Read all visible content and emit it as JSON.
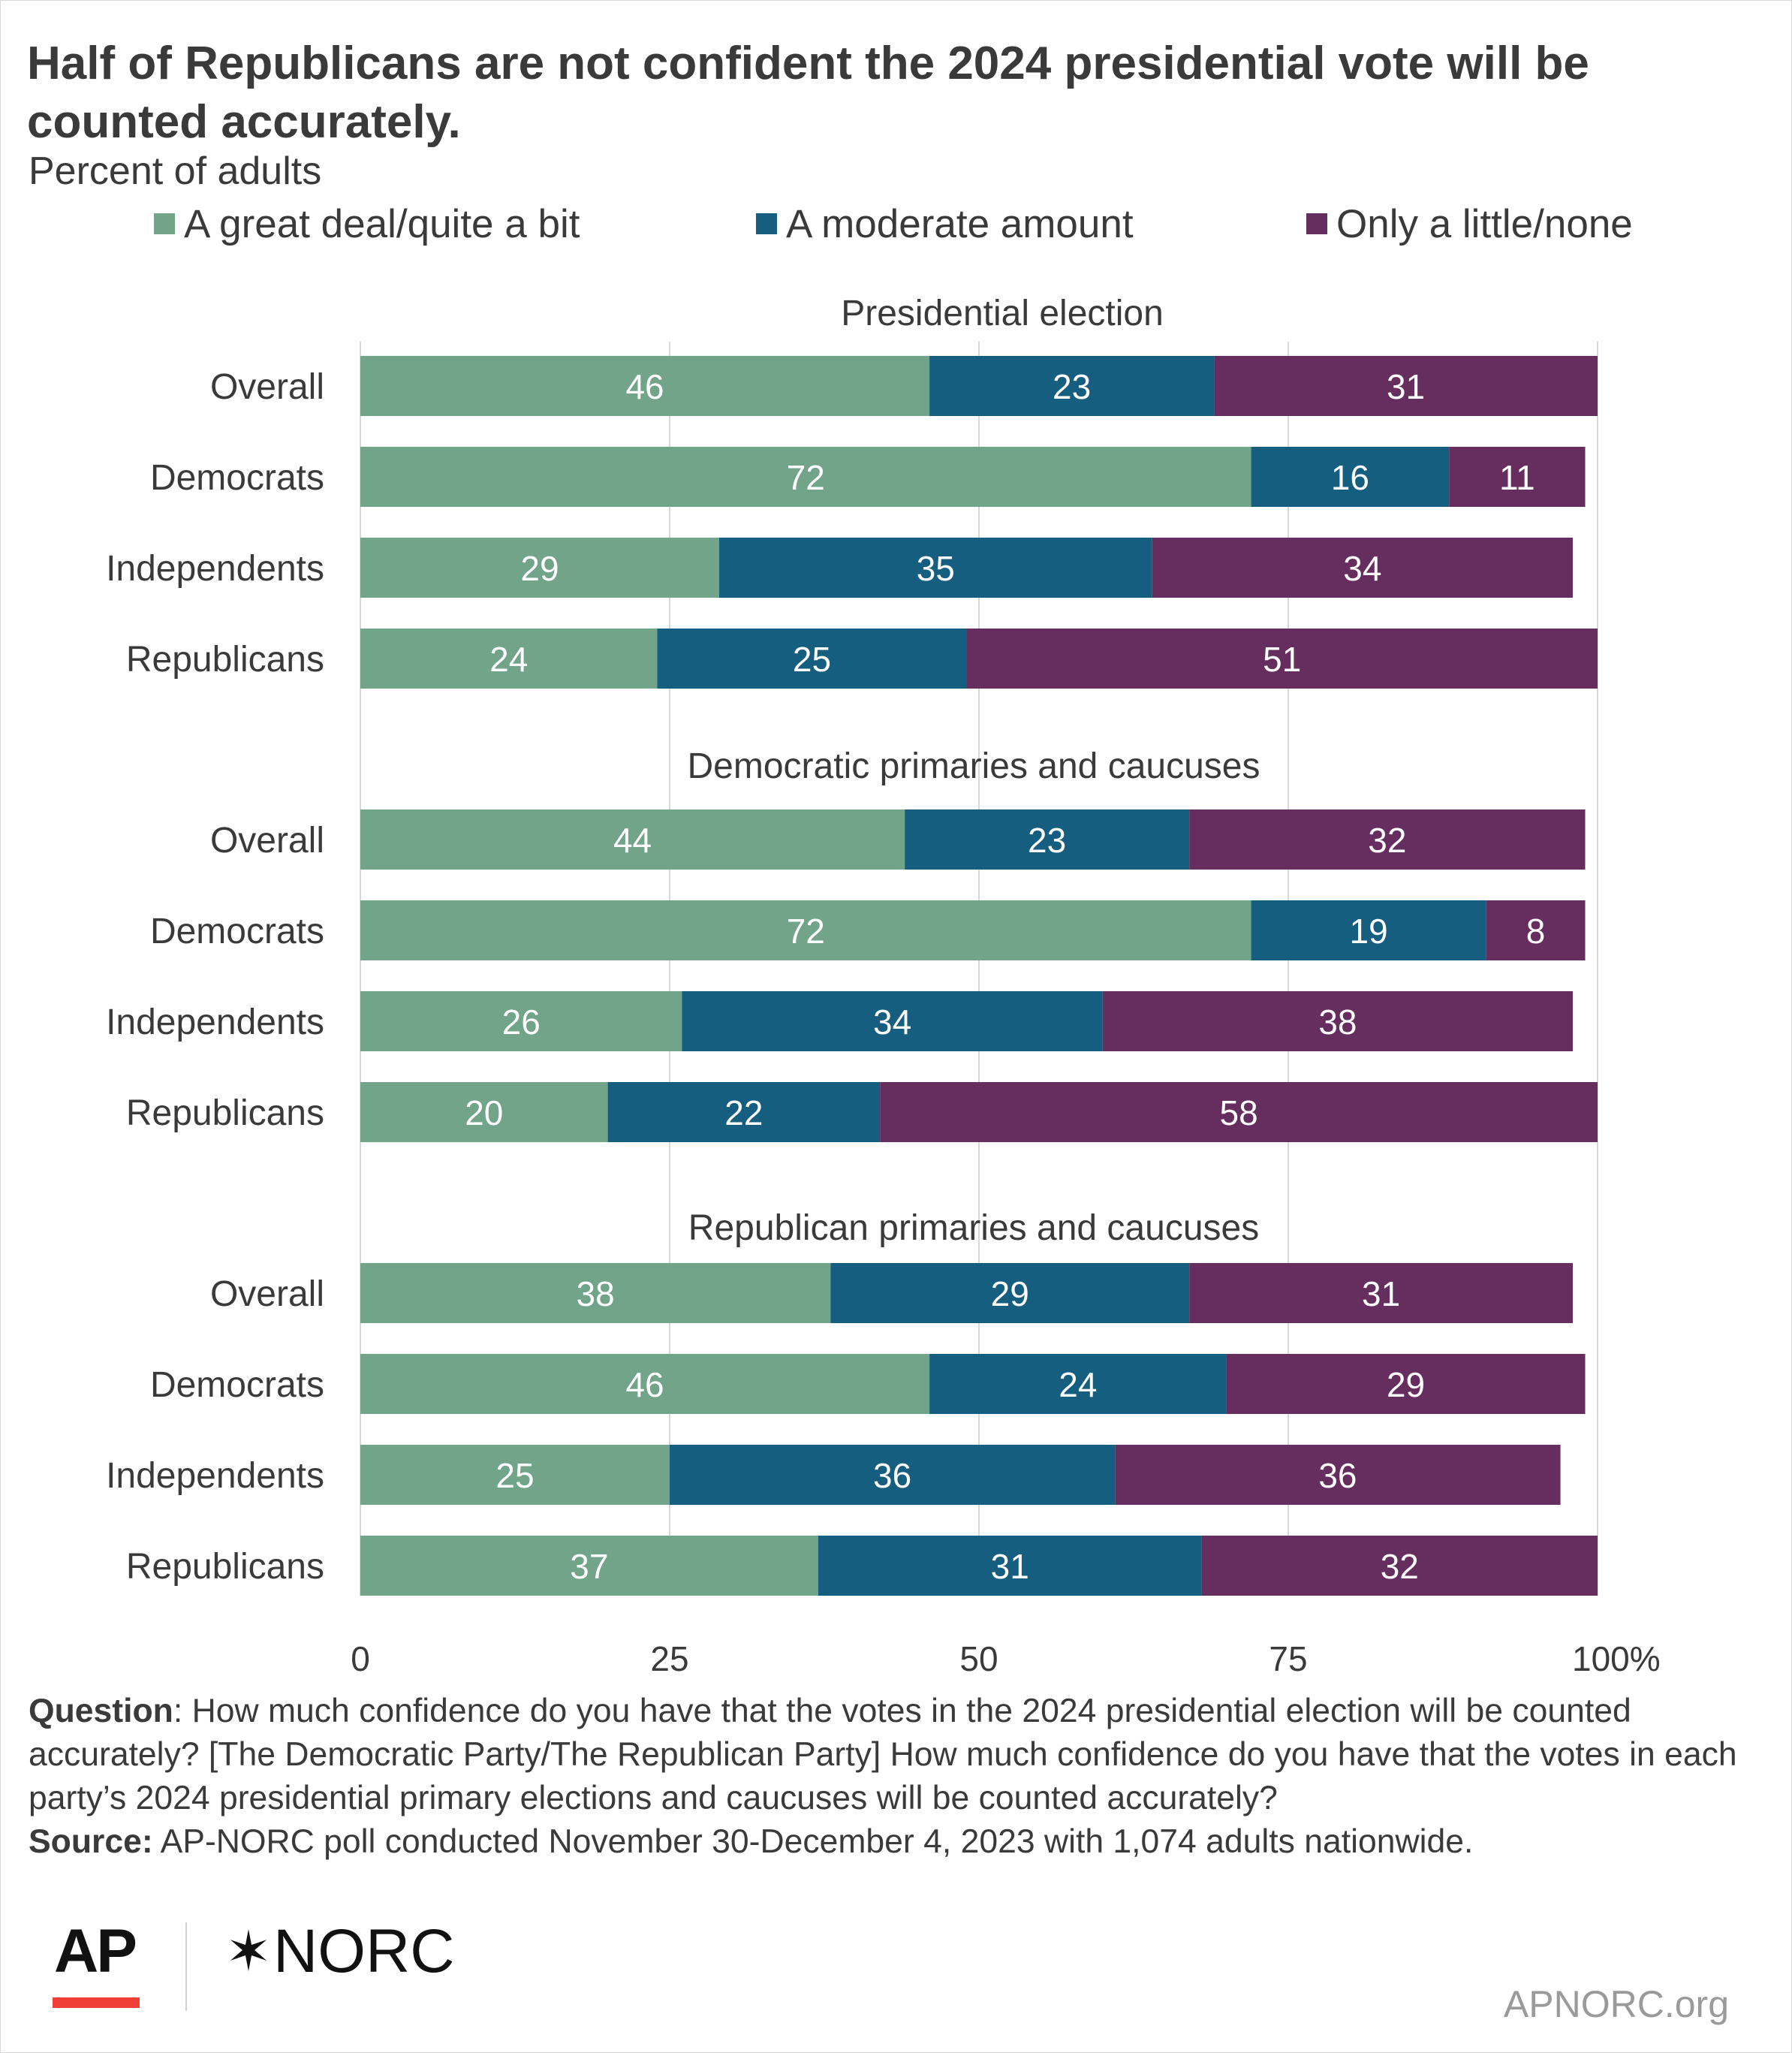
{
  "title": "Half of Republicans are not confident the 2024 presidential vote will be counted accurately.",
  "subtitle": "Percent of adults",
  "chart_data": {
    "type": "bar",
    "orientation": "horizontal",
    "stacked": true,
    "title": "Half of Republicans are not confident the 2024 presidential vote will be counted accurately.",
    "subtitle": "Percent of adults",
    "legend": [
      "A great deal/quite a bit",
      "A moderate amount",
      "Only a little/none"
    ],
    "legend_position": "top",
    "series_colors": [
      "#72a489",
      "#155e7f",
      "#662d5f"
    ],
    "x_axis": {
      "ticks": [
        "0",
        "25",
        "50",
        "75",
        "100%"
      ],
      "xlim": [
        0,
        100
      ]
    },
    "grid": true,
    "groups": [
      {
        "label": "Presidential election",
        "rows": [
          {
            "category": "Overall",
            "values": [
              46,
              23,
              31
            ]
          },
          {
            "category": "Democrats",
            "values": [
              72,
              16,
              11
            ]
          },
          {
            "category": "Independents",
            "values": [
              29,
              35,
              34
            ]
          },
          {
            "category": "Republicans",
            "values": [
              24,
              25,
              51
            ]
          }
        ]
      },
      {
        "label": "Democratic primaries and caucuses",
        "rows": [
          {
            "category": "Overall",
            "values": [
              44,
              23,
              32
            ]
          },
          {
            "category": "Democrats",
            "values": [
              72,
              19,
              8
            ]
          },
          {
            "category": "Independents",
            "values": [
              26,
              34,
              38
            ]
          },
          {
            "category": "Republicans",
            "values": [
              20,
              22,
              58
            ]
          }
        ]
      },
      {
        "label": "Republican primaries and caucuses",
        "rows": [
          {
            "category": "Overall",
            "values": [
              38,
              29,
              31
            ]
          },
          {
            "category": "Democrats",
            "values": [
              46,
              24,
              29
            ]
          },
          {
            "category": "Independents",
            "values": [
              25,
              36,
              36
            ]
          },
          {
            "category": "Republicans",
            "values": [
              37,
              31,
              32
            ]
          }
        ]
      }
    ]
  },
  "notes": {
    "question_label": "Question",
    "question_text": ": How much confidence do you have that the votes in the 2024 presidential election will be counted accurately? [The Democratic Party/The Republican Party] How much confidence do you have that the votes in each party’s 2024 presidential primary elections and caucuses will be counted accurately?",
    "source_label": "Source:",
    "source_text": " AP-NORC poll conducted November 30-December 4, 2023 with 1,074 adults nationwide."
  },
  "logos": {
    "ap": "AP",
    "norc_star": "✶",
    "norc": "NORC"
  },
  "footer_url": "APNORC.org"
}
